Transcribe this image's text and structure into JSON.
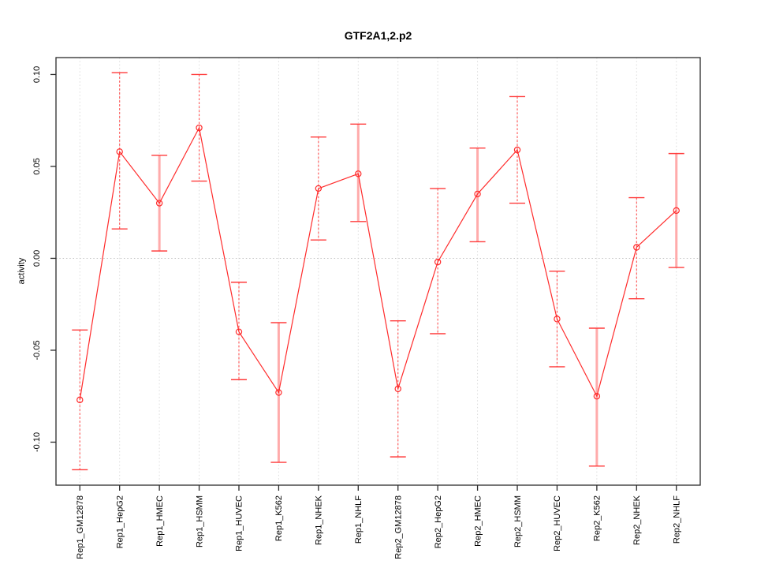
{
  "figure": {
    "title": "GTF2A1,2.p2",
    "ylabel": "activity"
  },
  "chart_data": {
    "type": "line",
    "title": "GTF2A1,2.p2",
    "xlabel": "",
    "ylabel": "activity",
    "ylim": [
      -0.1234,
      0.1092
    ],
    "yticks": [
      -0.1,
      -0.05,
      0.0,
      0.05,
      0.1
    ],
    "ytick_labels": [
      "-0.10",
      "-0.05",
      "0.00",
      "0.05",
      "0.10"
    ],
    "grid": {
      "vertical_dotted": true,
      "zero_line_dotted": true,
      "legend": "none"
    },
    "categories": [
      "Rep1_GM12878",
      "Rep1_HepG2",
      "Rep1_HMEC",
      "Rep1_HSMM",
      "Rep1_HUVEC",
      "Rep1_K562",
      "Rep1_NHEK",
      "Rep1_NHLF",
      "Rep2_GM12878",
      "Rep2_HepG2",
      "Rep2_HMEC",
      "Rep2_HSMM",
      "Rep2_HUVEC",
      "Rep2_K562",
      "Rep2_NHEK",
      "Rep2_NHLF"
    ],
    "series": [
      {
        "name": "activity",
        "values": [
          -0.077,
          0.058,
          0.03,
          0.071,
          -0.04,
          -0.073,
          0.038,
          0.046,
          -0.071,
          -0.002,
          0.035,
          0.059,
          -0.033,
          -0.075,
          0.006,
          0.026
        ],
        "ci_high": [
          -0.039,
          0.101,
          0.056,
          0.1,
          -0.013,
          -0.035,
          0.066,
          0.073,
          -0.034,
          0.038,
          0.06,
          0.088,
          -0.007,
          -0.038,
          0.033,
          0.057
        ],
        "ci_low": [
          -0.115,
          0.016,
          0.004,
          0.042,
          -0.066,
          -0.111,
          0.01,
          0.02,
          -0.108,
          -0.041,
          0.009,
          0.03,
          -0.059,
          -0.113,
          -0.022,
          -0.005
        ]
      }
    ],
    "error_bar_styles": [
      "dashed",
      "dashed",
      "solid",
      "dashed",
      "dashed",
      "solid",
      "dashed",
      "solid",
      "dashed",
      "dashed",
      "solid",
      "dashed",
      "dashed",
      "solid",
      "dashed",
      "solid"
    ],
    "colors": {
      "line": "#ff2b2b",
      "point": "#ff2b2b",
      "error_cap": "#ff3b3b",
      "stem_dashed": "#ff5252",
      "stem_solid": "#ffabab",
      "grid": "#dcdcdc",
      "zero_line": "#c2c2c2",
      "axis": "#2b2b2b",
      "text": "#000000",
      "background": "#ffffff"
    }
  }
}
